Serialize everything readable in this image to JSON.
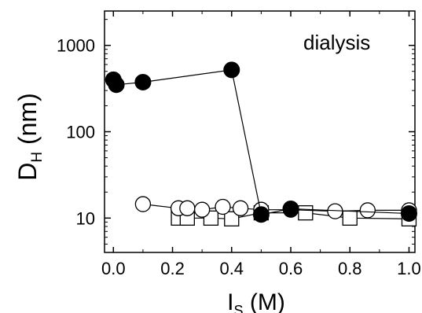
{
  "chart_data": {
    "type": "scatter",
    "title": "",
    "annotation": "dialysis",
    "xlabel": {
      "main": "I",
      "sub": "S",
      "unit": "(M)"
    },
    "ylabel": {
      "main": "D",
      "sub": "H",
      "unit": "(nm)"
    },
    "x_scale": "linear",
    "y_scale": "log",
    "xlim": [
      -0.03,
      1.02
    ],
    "ylim": [
      4,
      2500
    ],
    "xticks": [
      0.0,
      0.2,
      0.4,
      0.6,
      0.8,
      1.0
    ],
    "xtick_labels": [
      "0.0",
      "0.2",
      "0.4",
      "0.6",
      "0.8",
      "1.0"
    ],
    "yticks": [
      10,
      100,
      1000
    ],
    "ytick_labels": [
      "10",
      "100",
      "1000"
    ],
    "grid": false,
    "series": [
      {
        "marker": "filled-circle",
        "connected": true,
        "color": "#000000",
        "points": [
          {
            "x": 0.0,
            "y": 400
          },
          {
            "x": 0.01,
            "y": 350
          },
          {
            "x": 0.1,
            "y": 375
          },
          {
            "x": 0.4,
            "y": 520
          },
          {
            "x": 0.5,
            "y": 11
          },
          {
            "x": 0.6,
            "y": 12.8
          },
          {
            "x": 1.0,
            "y": 11.3
          }
        ]
      },
      {
        "marker": "open-circle",
        "connected": true,
        "color": "#000000",
        "points": [
          {
            "x": 0.1,
            "y": 14.5
          },
          {
            "x": 0.22,
            "y": 13
          },
          {
            "x": 0.25,
            "y": 13
          },
          {
            "x": 0.3,
            "y": 12.5
          },
          {
            "x": 0.37,
            "y": 13.5
          },
          {
            "x": 0.43,
            "y": 13
          },
          {
            "x": 0.5,
            "y": 12.5
          },
          {
            "x": 0.6,
            "y": 12.5
          },
          {
            "x": 0.75,
            "y": 12
          },
          {
            "x": 0.86,
            "y": 12.3
          },
          {
            "x": 1.0,
            "y": 12.3
          }
        ]
      },
      {
        "marker": "open-square",
        "connected": true,
        "color": "#000000",
        "points": [
          {
            "x": 0.22,
            "y": 10
          },
          {
            "x": 0.25,
            "y": 10
          },
          {
            "x": 0.33,
            "y": 10
          },
          {
            "x": 0.4,
            "y": 9.8
          },
          {
            "x": 0.5,
            "y": 11.5
          },
          {
            "x": 0.65,
            "y": 11.5
          },
          {
            "x": 0.8,
            "y": 10
          },
          {
            "x": 1.0,
            "y": 9.8
          }
        ]
      }
    ]
  }
}
